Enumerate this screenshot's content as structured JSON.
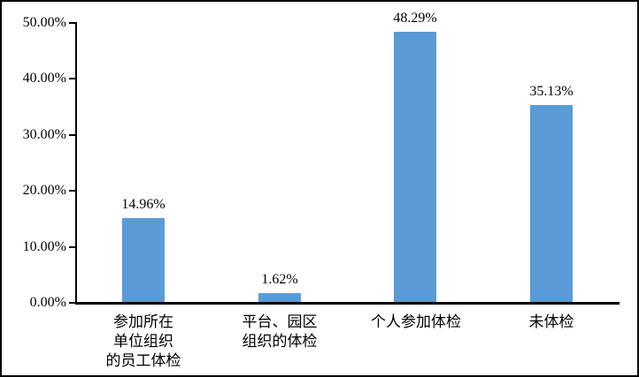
{
  "chart_data": {
    "type": "bar",
    "title": "",
    "xlabel": "",
    "ylabel": "",
    "categories": [
      "参加所在单位组织的员工体检",
      "平台、园区组织的体检",
      "个人参加体检",
      "未体检"
    ],
    "category_label_lines": [
      [
        "参加所在",
        "单位组织",
        "的员工体检"
      ],
      [
        "平台、园区",
        "组织的体检"
      ],
      [
        "个人参加体检"
      ],
      [
        "未体检"
      ]
    ],
    "values": [
      14.96,
      1.62,
      48.29,
      35.13
    ],
    "data_labels": [
      "14.96%",
      "1.62%",
      "48.29%",
      "35.13%"
    ],
    "y_ticks": [
      0,
      10,
      20,
      30,
      40,
      50
    ],
    "y_tick_labels": [
      "0.00%",
      "10.00%",
      "20.00%",
      "30.00%",
      "40.00%",
      "50.00%"
    ],
    "ylim": [
      0,
      50
    ],
    "grid": false,
    "legend": "none",
    "bar_color": "#5B9BD5",
    "axis_color": "#000000",
    "background_color": "#FFFFFF",
    "border_color": "#000000"
  }
}
